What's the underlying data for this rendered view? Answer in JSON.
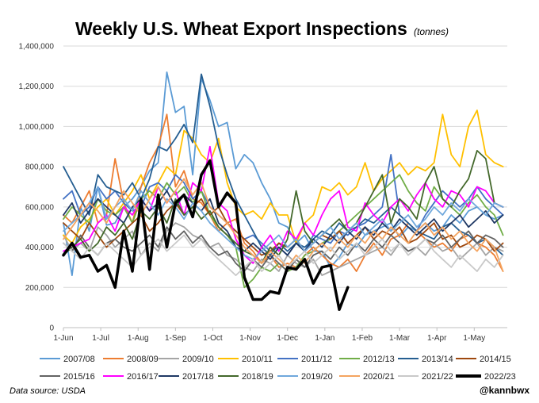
{
  "chart_data": {
    "type": "line",
    "title": "Weekly U.S. Wheat Export Inspections",
    "subtitle": "(tonnes)",
    "x_ticks": [
      "1-Jun",
      "1-Jul",
      "1-Aug",
      "1-Sep",
      "1-Oct",
      "1-Nov",
      "1-Dec",
      "1-Jan",
      "1-Feb",
      "1-Mar",
      "1-Apr",
      "1-May"
    ],
    "weeks_per_year": 52,
    "y_ticks": [
      "0",
      "200,000",
      "400,000",
      "600,000",
      "800,000",
      "1,000,000",
      "1,200,000",
      "1,400,000"
    ],
    "ylim": [
      0,
      1400000
    ],
    "legend_position": "bottom",
    "series": [
      {
        "name": "2007/08",
        "color": "#5b9bd5",
        "values": [
          520000,
          260000,
          600000,
          480000,
          700000,
          510000,
          520000,
          600000,
          640000,
          700000,
          780000,
          820000,
          1270000,
          1070000,
          1100000,
          760000,
          1240000,
          1130000,
          1000000,
          1020000,
          790000,
          860000,
          820000,
          720000,
          640000,
          520000,
          500000,
          420000,
          460000,
          380000,
          380000,
          300000,
          350000,
          420000,
          400000,
          460000,
          480000,
          500000,
          520000,
          450000,
          500000,
          480000,
          520000,
          480000,
          500000,
          560000,
          520000,
          580000,
          600000,
          560000,
          540000,
          560000
        ]
      },
      {
        "name": "2008/09",
        "color": "#ed7d31",
        "values": [
          560000,
          520000,
          600000,
          680000,
          520000,
          560000,
          840000,
          620000,
          520000,
          700000,
          820000,
          900000,
          1060000,
          700000,
          780000,
          640000,
          620000,
          560000,
          480000,
          520000,
          540000,
          420000,
          380000,
          320000,
          360000,
          300000,
          320000,
          300000,
          360000,
          400000,
          360000,
          320000,
          300000,
          340000,
          280000,
          360000,
          420000,
          360000,
          440000,
          460000,
          520000,
          480000,
          440000,
          400000,
          420000,
          380000,
          440000,
          460000,
          420000,
          400000,
          360000,
          280000
        ]
      },
      {
        "name": "2009/10",
        "color": "#a5a5a5",
        "values": [
          460000,
          380000,
          420000,
          380000,
          500000,
          460000,
          400000,
          440000,
          480000,
          360000,
          420000,
          380000,
          480000,
          520000,
          500000,
          460000,
          440000,
          400000,
          420000,
          360000,
          340000,
          300000,
          280000,
          340000,
          320000,
          280000,
          360000,
          320000,
          300000,
          340000,
          260000,
          280000,
          300000,
          320000,
          340000,
          360000,
          380000,
          400000,
          360000,
          420000,
          380000,
          400000,
          360000,
          420000,
          380000,
          400000,
          340000,
          380000,
          420000,
          360000,
          400000,
          380000
        ]
      },
      {
        "name": "2010/11",
        "color": "#ffc000",
        "values": [
          460000,
          420000,
          500000,
          540000,
          600000,
          640000,
          560000,
          620000,
          680000,
          760000,
          640000,
          720000,
          800000,
          760000,
          980000,
          940000,
          860000,
          820000,
          940000,
          720000,
          600000,
          560000,
          580000,
          540000,
          620000,
          560000,
          560000,
          420000,
          520000,
          560000,
          700000,
          680000,
          720000,
          660000,
          700000,
          820000,
          680000,
          740000,
          780000,
          820000,
          760000,
          800000,
          780000,
          820000,
          1060000,
          860000,
          800000,
          1000000,
          1080000,
          860000,
          820000,
          800000
        ]
      },
      {
        "name": "2011/12",
        "color": "#4472c4",
        "values": [
          640000,
          680000,
          560000,
          600000,
          700000,
          640000,
          680000,
          620000,
          580000,
          600000,
          700000,
          720000,
          680000,
          760000,
          720000,
          640000,
          680000,
          600000,
          560000,
          520000,
          480000,
          440000,
          460000,
          420000,
          380000,
          400000,
          360000,
          420000,
          380000,
          460000,
          440000,
          420000,
          480000,
          460000,
          500000,
          520000,
          560000,
          600000,
          860000,
          560000,
          520000,
          480000,
          560000,
          620000,
          680000,
          640000,
          600000,
          640000,
          700000,
          640000,
          600000,
          560000
        ]
      },
      {
        "name": "2012/13",
        "color": "#70ad47",
        "values": [
          540000,
          600000,
          560000,
          520000,
          640000,
          580000,
          560000,
          600000,
          520000,
          640000,
          680000,
          640000,
          720000,
          660000,
          700000,
          620000,
          680000,
          560000,
          500000,
          460000,
          400000,
          200000,
          240000,
          300000,
          280000,
          320000,
          280000,
          300000,
          360000,
          380000,
          420000,
          440000,
          480000,
          520000,
          560000,
          600000,
          640000,
          680000,
          720000,
          760000,
          680000,
          620000,
          580000,
          700000,
          640000,
          600000,
          560000,
          620000,
          660000,
          600000,
          560000,
          460000
        ]
      },
      {
        "name": "2013/14",
        "color": "#255e91",
        "values": [
          800000,
          720000,
          640000,
          560000,
          760000,
          700000,
          680000,
          660000,
          720000,
          640000,
          740000,
          900000,
          880000,
          940000,
          1010000,
          920000,
          1260000,
          1100000,
          900000,
          760000,
          640000,
          560000,
          480000,
          400000,
          360000,
          420000,
          380000,
          420000,
          400000,
          440000,
          480000,
          460000,
          520000,
          480000,
          500000,
          540000,
          520000,
          560000,
          600000,
          560000,
          520000,
          480000,
          460000,
          440000,
          500000,
          520000,
          480000,
          460000,
          420000,
          440000,
          400000,
          360000
        ]
      },
      {
        "name": "2014/15",
        "color": "#9e480e",
        "values": [
          520000,
          480000,
          440000,
          520000,
          460000,
          400000,
          440000,
          480000,
          520000,
          560000,
          480000,
          520000,
          580000,
          620000,
          560000,
          600000,
          640000,
          560000,
          600000,
          520000,
          480000,
          440000,
          400000,
          360000,
          380000,
          420000,
          400000,
          440000,
          380000,
          420000,
          460000,
          440000,
          480000,
          420000,
          460000,
          500000,
          440000,
          480000,
          460000,
          500000,
          420000,
          440000,
          480000,
          520000,
          440000,
          460000,
          400000,
          420000,
          460000,
          440000,
          380000,
          420000
        ]
      },
      {
        "name": "2015/16",
        "color": "#636363",
        "values": [
          420000,
          380000,
          460000,
          400000,
          360000,
          420000,
          440000,
          400000,
          380000,
          420000,
          460000,
          400000,
          500000,
          440000,
          480000,
          420000,
          460000,
          400000,
          360000,
          380000,
          320000,
          280000,
          340000,
          300000,
          360000,
          320000,
          280000,
          340000,
          300000,
          360000,
          380000,
          340000,
          400000,
          360000,
          420000,
          380000,
          440000,
          400000,
          460000,
          420000,
          380000,
          400000,
          440000,
          420000,
          460000,
          400000,
          440000,
          480000,
          420000,
          460000,
          440000,
          400000
        ]
      },
      {
        "name": "2016/17",
        "color": "#ff00ff",
        "values": [
          380000,
          400000,
          420000,
          440000,
          520000,
          560000,
          480000,
          600000,
          560000,
          640000,
          580000,
          700000,
          620000,
          680000,
          560000,
          720000,
          680000,
          900000,
          620000,
          580000,
          440000,
          360000,
          320000,
          400000,
          460000,
          380000,
          480000,
          440000,
          520000,
          460000,
          560000,
          640000,
          680000,
          500000,
          480000,
          620000,
          560000,
          520000,
          600000,
          640000,
          580000,
          660000,
          720000,
          640000,
          600000,
          680000,
          660000,
          600000,
          700000,
          680000,
          620000,
          600000
        ]
      },
      {
        "name": "2017/18",
        "color": "#1f3864",
        "values": [
          560000,
          620000,
          520000,
          580000,
          640000,
          600000,
          560000,
          520000,
          600000,
          640000,
          580000,
          620000,
          680000,
          600000,
          660000,
          620000,
          580000,
          640000,
          520000,
          480000,
          400000,
          380000,
          420000,
          380000,
          340000,
          400000,
          360000,
          420000,
          380000,
          440000,
          400000,
          460000,
          420000,
          480000,
          440000,
          500000,
          460000,
          520000,
          480000,
          540000,
          500000,
          460000,
          500000,
          540000,
          480000,
          520000,
          560000,
          500000,
          540000,
          580000,
          520000,
          560000
        ]
      },
      {
        "name": "2018/19",
        "color": "#43682b",
        "values": [
          360000,
          400000,
          440000,
          380000,
          420000,
          500000,
          460000,
          520000,
          440000,
          580000,
          540000,
          600000,
          520000,
          640000,
          560000,
          600000,
          540000,
          580000,
          500000,
          460000,
          420000,
          380000,
          360000,
          320000,
          400000,
          360000,
          440000,
          680000,
          480000,
          420000,
          460000,
          500000,
          540000,
          480000,
          520000,
          600000,
          680000,
          760000,
          520000,
          640000,
          600000,
          540000,
          720000,
          800000,
          640000,
          600000,
          680000,
          740000,
          880000,
          840000,
          620000,
          600000
        ]
      },
      {
        "name": "2019/20",
        "color": "#6fa8dc",
        "values": [
          480000,
          520000,
          560000,
          620000,
          700000,
          540000,
          600000,
          640000,
          580000,
          680000,
          620000,
          560000,
          640000,
          600000,
          540000,
          620000,
          580000,
          520000,
          480000,
          440000,
          400000,
          360000,
          340000,
          380000,
          420000,
          460000,
          400000,
          440000,
          380000,
          420000,
          460000,
          500000,
          440000,
          480000,
          520000,
          460000,
          500000,
          540000,
          480000,
          520000,
          560000,
          500000,
          540000,
          600000,
          560000,
          620000,
          580000,
          640000,
          600000,
          560000,
          620000,
          600000
        ]
      },
      {
        "name": "2020/21",
        "color": "#f4a460",
        "values": [
          440000,
          500000,
          560000,
          620000,
          580000,
          520000,
          600000,
          680000,
          620000,
          560000,
          640000,
          700000,
          620000,
          680000,
          740000,
          660000,
          720000,
          600000,
          560000,
          520000,
          460000,
          400000,
          360000,
          320000,
          380000,
          340000,
          300000,
          360000,
          320000,
          380000,
          420000,
          380000,
          440000,
          400000,
          460000,
          420000,
          480000,
          440000,
          500000,
          460000,
          420000,
          480000,
          520000,
          460000,
          500000,
          440000,
          480000,
          420000,
          380000,
          440000,
          400000,
          280000
        ]
      },
      {
        "name": "2021/22",
        "color": "#c9c9c9",
        "values": [
          420000,
          380000,
          340000,
          400000,
          360000,
          420000,
          380000,
          340000,
          300000,
          360000,
          400000,
          440000,
          380000,
          420000,
          460000,
          400000,
          440000,
          380000,
          340000,
          300000,
          260000,
          300000,
          340000,
          280000,
          320000,
          360000,
          300000,
          340000,
          380000,
          320000,
          360000,
          400000,
          340000,
          380000,
          420000,
          360000,
          400000,
          440000,
          380000,
          420000,
          360000,
          400000,
          440000,
          380000,
          340000,
          300000,
          360000,
          320000,
          280000,
          340000,
          300000,
          360000
        ]
      },
      {
        "name": "2022/23",
        "color": "#000000",
        "values": [
          360000,
          420000,
          350000,
          360000,
          280000,
          310000,
          200000,
          480000,
          280000,
          640000,
          290000,
          660000,
          400000,
          620000,
          660000,
          550000,
          760000,
          830000,
          600000,
          670000,
          620000,
          250000,
          140000,
          140000,
          180000,
          170000,
          300000,
          290000,
          340000,
          220000,
          300000,
          310000,
          90000,
          200000
        ]
      }
    ],
    "highlight_series": "2022/23"
  },
  "footer": {
    "source": "Data source: USDA",
    "handle": "@kannbwx"
  }
}
